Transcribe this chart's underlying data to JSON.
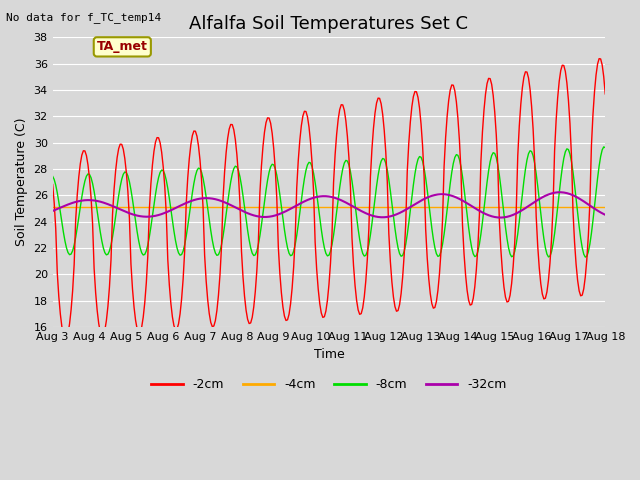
{
  "title": "Alfalfa Soil Temperatures Set C",
  "xlabel": "Time",
  "ylabel": "Soil Temperature (C)",
  "note": "No data for f_TC_temp14",
  "legend_label": "TA_met",
  "ylim": [
    16,
    38
  ],
  "yticks": [
    16,
    18,
    20,
    22,
    24,
    26,
    28,
    30,
    32,
    34,
    36,
    38
  ],
  "x_start_day": 3,
  "x_end_day": 18,
  "x_tick_days": [
    3,
    4,
    5,
    6,
    7,
    8,
    9,
    10,
    11,
    12,
    13,
    14,
    15,
    16,
    17,
    18
  ],
  "x_tick_labels": [
    "Aug 3",
    "Aug 4",
    "Aug 5",
    "Aug 6",
    "Aug 7",
    "Aug 8",
    "Aug 9",
    "Aug 10",
    "Aug 11",
    "Aug 12",
    "Aug 13",
    "Aug 14",
    "Aug 15",
    "Aug 16",
    "Aug 17",
    "Aug 18"
  ],
  "color_red": "#ff0000",
  "color_orange": "#ffaa00",
  "color_green": "#00dd00",
  "color_purple": "#aa00aa",
  "bg_color": "#d8d8d8",
  "grid_color": "#ffffff",
  "title_fontsize": 13,
  "axis_label_fontsize": 9,
  "tick_fontsize": 8,
  "legend_fontsize": 9,
  "note_fontsize": 8
}
